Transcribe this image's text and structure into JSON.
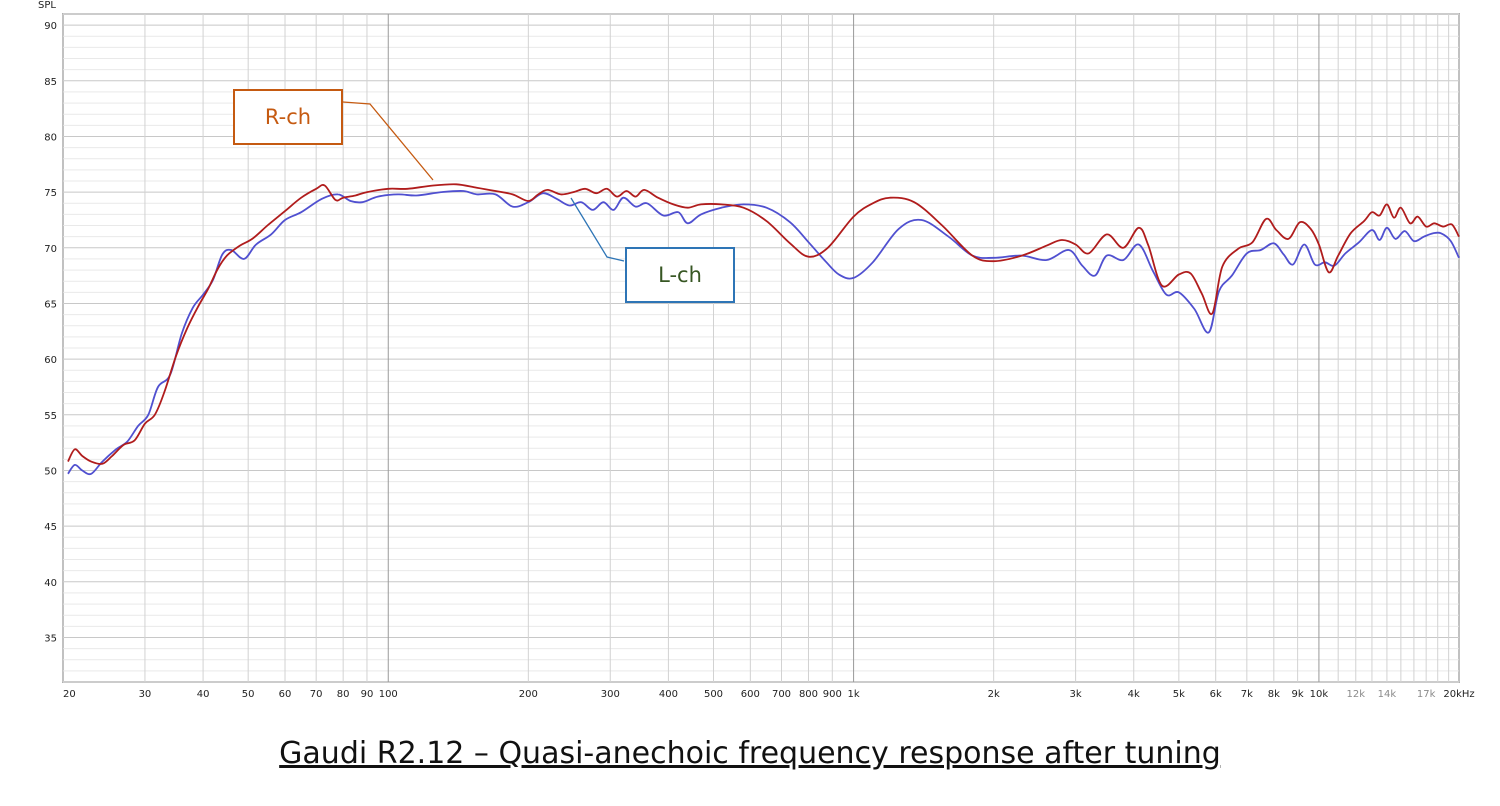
{
  "chart_data": {
    "type": "line",
    "title": "Gaudi R2.12 – Quasi-anechoic frequency response after tuning",
    "ylabel": "SPL",
    "x_scale": "log",
    "xlim": [
      20,
      20000
    ],
    "ylim": [
      31,
      91
    ],
    "y_ticks": [
      35,
      40,
      45,
      50,
      55,
      60,
      65,
      70,
      75,
      80,
      85,
      90
    ],
    "x_ticks": [
      {
        "v": 20,
        "t": "20"
      },
      {
        "v": 30,
        "t": "30"
      },
      {
        "v": 40,
        "t": "40"
      },
      {
        "v": 50,
        "t": "50"
      },
      {
        "v": 60,
        "t": "60"
      },
      {
        "v": 70,
        "t": "70"
      },
      {
        "v": 80,
        "t": "80"
      },
      {
        "v": 90,
        "t": "90"
      },
      {
        "v": 100,
        "t": "100"
      },
      {
        "v": 200,
        "t": "200"
      },
      {
        "v": 300,
        "t": "300"
      },
      {
        "v": 400,
        "t": "400"
      },
      {
        "v": 500,
        "t": "500"
      },
      {
        "v": 600,
        "t": "600"
      },
      {
        "v": 700,
        "t": "700"
      },
      {
        "v": 800,
        "t": "800"
      },
      {
        "v": 900,
        "t": "900"
      },
      {
        "v": 1000,
        "t": "1k"
      },
      {
        "v": 2000,
        "t": "2k"
      },
      {
        "v": 3000,
        "t": "3k"
      },
      {
        "v": 4000,
        "t": "4k"
      },
      {
        "v": 5000,
        "t": "5k"
      },
      {
        "v": 6000,
        "t": "6k"
      },
      {
        "v": 7000,
        "t": "7k"
      },
      {
        "v": 8000,
        "t": "8k"
      },
      {
        "v": 9000,
        "t": "9k"
      },
      {
        "v": 10000,
        "t": "10k"
      },
      {
        "v": 12000,
        "t": "12k",
        "dim": true
      },
      {
        "v": 14000,
        "t": "14k",
        "dim": true
      },
      {
        "v": 17000,
        "t": "17k",
        "dim": true
      },
      {
        "v": 20000,
        "t": "20kHz"
      }
    ],
    "grid": true,
    "series": [
      {
        "name": "R-ch",
        "color": "#b01c1c",
        "points": [
          [
            20.5,
            50.8
          ],
          [
            21.2,
            51.9
          ],
          [
            22,
            51.3
          ],
          [
            23,
            50.8
          ],
          [
            24.3,
            50.6
          ],
          [
            25.5,
            51.3
          ],
          [
            27,
            52.3
          ],
          [
            28.5,
            52.7
          ],
          [
            30,
            54.2
          ],
          [
            31.5,
            55.0
          ],
          [
            33,
            57.0
          ],
          [
            35,
            60.3
          ],
          [
            37,
            62.8
          ],
          [
            39,
            64.7
          ],
          [
            41,
            66.3
          ],
          [
            43,
            68.1
          ],
          [
            45,
            69.3
          ],
          [
            48,
            70.2
          ],
          [
            51,
            70.8
          ],
          [
            55,
            72.0
          ],
          [
            60,
            73.3
          ],
          [
            65,
            74.5
          ],
          [
            70,
            75.3
          ],
          [
            73,
            75.6
          ],
          [
            77,
            74.3
          ],
          [
            80,
            74.5
          ],
          [
            85,
            74.7
          ],
          [
            90,
            75.0
          ],
          [
            100,
            75.3
          ],
          [
            110,
            75.3
          ],
          [
            125,
            75.6
          ],
          [
            140,
            75.7
          ],
          [
            155,
            75.4
          ],
          [
            170,
            75.1
          ],
          [
            185,
            74.8
          ],
          [
            200,
            74.2
          ],
          [
            210,
            74.8
          ],
          [
            220,
            75.2
          ],
          [
            235,
            74.8
          ],
          [
            250,
            75.0
          ],
          [
            265,
            75.3
          ],
          [
            280,
            74.9
          ],
          [
            295,
            75.3
          ],
          [
            310,
            74.6
          ],
          [
            325,
            75.1
          ],
          [
            340,
            74.6
          ],
          [
            355,
            75.2
          ],
          [
            380,
            74.5
          ],
          [
            410,
            73.9
          ],
          [
            440,
            73.6
          ],
          [
            470,
            73.9
          ],
          [
            520,
            73.9
          ],
          [
            580,
            73.6
          ],
          [
            650,
            72.4
          ],
          [
            730,
            70.4
          ],
          [
            800,
            69.2
          ],
          [
            880,
            70.0
          ],
          [
            1000,
            72.8
          ],
          [
            1100,
            74.0
          ],
          [
            1200,
            74.5
          ],
          [
            1350,
            74.1
          ],
          [
            1550,
            72.0
          ],
          [
            1800,
            69.3
          ],
          [
            2000,
            68.8
          ],
          [
            2300,
            69.3
          ],
          [
            2600,
            70.2
          ],
          [
            2800,
            70.7
          ],
          [
            3000,
            70.3
          ],
          [
            3200,
            69.5
          ],
          [
            3500,
            71.2
          ],
          [
            3800,
            70.0
          ],
          [
            4100,
            71.8
          ],
          [
            4300,
            70.2
          ],
          [
            4600,
            66.6
          ],
          [
            5000,
            67.6
          ],
          [
            5300,
            67.7
          ],
          [
            5600,
            65.9
          ],
          [
            5900,
            64.1
          ],
          [
            6200,
            68.3
          ],
          [
            6700,
            69.9
          ],
          [
            7200,
            70.5
          ],
          [
            7700,
            72.6
          ],
          [
            8100,
            71.6
          ],
          [
            8600,
            70.8
          ],
          [
            9100,
            72.3
          ],
          [
            9600,
            71.7
          ],
          [
            10000,
            70.3
          ],
          [
            10500,
            67.8
          ],
          [
            11000,
            69.3
          ],
          [
            11700,
            71.3
          ],
          [
            12500,
            72.4
          ],
          [
            13000,
            73.2
          ],
          [
            13500,
            72.9
          ],
          [
            14000,
            73.9
          ],
          [
            14500,
            72.7
          ],
          [
            15000,
            73.6
          ],
          [
            15700,
            72.2
          ],
          [
            16300,
            72.8
          ],
          [
            17000,
            71.9
          ],
          [
            17700,
            72.2
          ],
          [
            18500,
            71.9
          ],
          [
            19300,
            72.1
          ],
          [
            20000,
            71.0
          ]
        ]
      },
      {
        "name": "L-ch",
        "color": "#5050d0",
        "points": [
          [
            20.5,
            49.7
          ],
          [
            21.2,
            50.5
          ],
          [
            22,
            50.0
          ],
          [
            23,
            49.7
          ],
          [
            24.3,
            50.8
          ],
          [
            26,
            51.9
          ],
          [
            27.5,
            52.6
          ],
          [
            29,
            54.0
          ],
          [
            30.5,
            55.0
          ],
          [
            32,
            57.5
          ],
          [
            34,
            58.6
          ],
          [
            36,
            62.3
          ],
          [
            38,
            64.6
          ],
          [
            40,
            65.8
          ],
          [
            42,
            67.1
          ],
          [
            44,
            69.4
          ],
          [
            46,
            69.8
          ],
          [
            49,
            69.0
          ],
          [
            52,
            70.3
          ],
          [
            56,
            71.2
          ],
          [
            60,
            72.5
          ],
          [
            65,
            73.2
          ],
          [
            72,
            74.4
          ],
          [
            78,
            74.8
          ],
          [
            83,
            74.2
          ],
          [
            88,
            74.1
          ],
          [
            95,
            74.6
          ],
          [
            105,
            74.8
          ],
          [
            115,
            74.7
          ],
          [
            130,
            75.0
          ],
          [
            145,
            75.1
          ],
          [
            155,
            74.8
          ],
          [
            170,
            74.8
          ],
          [
            185,
            73.7
          ],
          [
            200,
            74.1
          ],
          [
            215,
            74.9
          ],
          [
            230,
            74.4
          ],
          [
            245,
            73.8
          ],
          [
            260,
            74.1
          ],
          [
            275,
            73.4
          ],
          [
            290,
            74.1
          ],
          [
            305,
            73.4
          ],
          [
            320,
            74.5
          ],
          [
            340,
            73.7
          ],
          [
            360,
            74.0
          ],
          [
            390,
            72.9
          ],
          [
            420,
            73.2
          ],
          [
            440,
            72.2
          ],
          [
            470,
            73.0
          ],
          [
            520,
            73.6
          ],
          [
            580,
            73.9
          ],
          [
            650,
            73.6
          ],
          [
            730,
            72.3
          ],
          [
            800,
            70.5
          ],
          [
            870,
            68.8
          ],
          [
            930,
            67.6
          ],
          [
            1000,
            67.3
          ],
          [
            1100,
            68.7
          ],
          [
            1250,
            71.7
          ],
          [
            1400,
            72.5
          ],
          [
            1600,
            71.0
          ],
          [
            1800,
            69.3
          ],
          [
            2000,
            69.1
          ],
          [
            2300,
            69.3
          ],
          [
            2600,
            68.9
          ],
          [
            2900,
            69.8
          ],
          [
            3100,
            68.4
          ],
          [
            3300,
            67.5
          ],
          [
            3500,
            69.3
          ],
          [
            3800,
            68.9
          ],
          [
            4100,
            70.3
          ],
          [
            4400,
            67.9
          ],
          [
            4700,
            65.8
          ],
          [
            5000,
            66.0
          ],
          [
            5400,
            64.5
          ],
          [
            5800,
            62.4
          ],
          [
            6100,
            66.1
          ],
          [
            6500,
            67.5
          ],
          [
            7000,
            69.5
          ],
          [
            7500,
            69.8
          ],
          [
            8000,
            70.4
          ],
          [
            8400,
            69.4
          ],
          [
            8800,
            68.5
          ],
          [
            9300,
            70.3
          ],
          [
            9800,
            68.5
          ],
          [
            10300,
            68.7
          ],
          [
            10800,
            68.4
          ],
          [
            11400,
            69.5
          ],
          [
            12200,
            70.5
          ],
          [
            13000,
            71.6
          ],
          [
            13500,
            70.7
          ],
          [
            14000,
            71.8
          ],
          [
            14600,
            70.8
          ],
          [
            15300,
            71.5
          ],
          [
            16000,
            70.6
          ],
          [
            16800,
            71.0
          ],
          [
            17600,
            71.3
          ],
          [
            18300,
            71.3
          ],
          [
            19200,
            70.6
          ],
          [
            20000,
            69.1
          ]
        ]
      }
    ]
  },
  "labels": {
    "r_label": "R-ch",
    "l_label": "L-ch"
  },
  "caption": "Gaudi R2.12 – Quasi-anechoic frequency response after tuning"
}
